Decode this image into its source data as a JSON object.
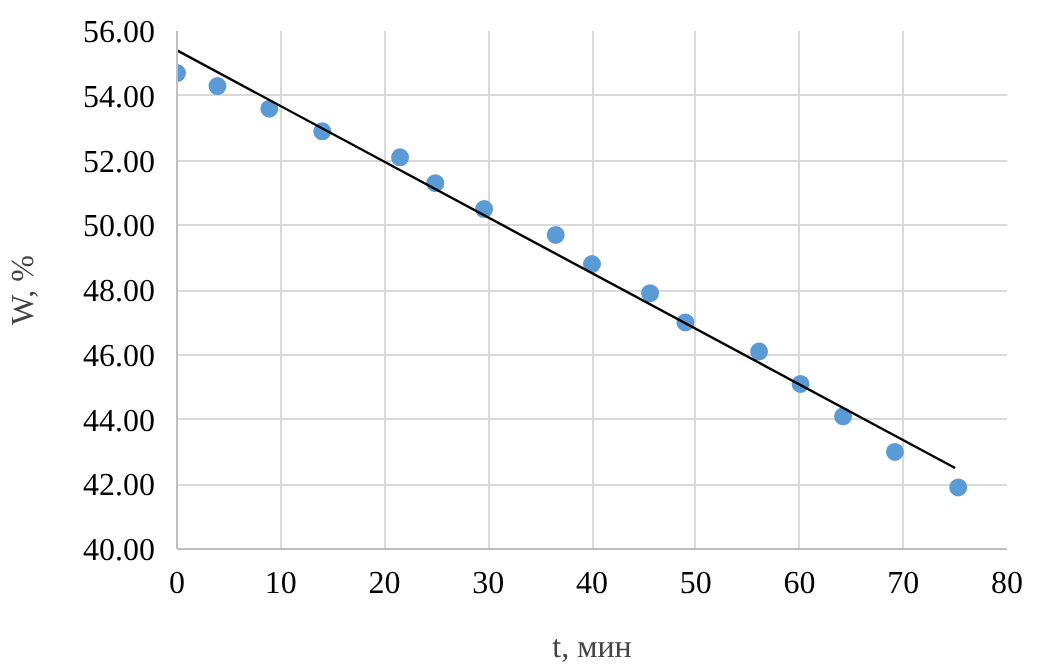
{
  "chart_data": {
    "type": "scatter",
    "xlabel": "t, мин",
    "ylabel": "W, %",
    "xlim": [
      0,
      80
    ],
    "xticks": [
      0,
      10,
      20,
      30,
      40,
      50,
      60,
      70,
      80
    ],
    "ylim": [
      40,
      56
    ],
    "yticks": [
      {
        "value": 40,
        "label": "40.00"
      },
      {
        "value": 42,
        "label": "42.00"
      },
      {
        "value": 44,
        "label": "44.00"
      },
      {
        "value": 46,
        "label": "46.00"
      },
      {
        "value": 48,
        "label": "48.00"
      },
      {
        "value": 50,
        "label": "50.00"
      },
      {
        "value": 52,
        "label": "52.00"
      },
      {
        "value": 54,
        "label": "54.00"
      },
      {
        "value": 56,
        "label": "56.00"
      }
    ],
    "grid": true,
    "marker": "circle",
    "series": [
      {
        "color": "#5b9bd5",
        "x": [
          0,
          3.9,
          8.9,
          14.0,
          21.5,
          24.9,
          29.6,
          36.5,
          40.0,
          45.6,
          49.0,
          56.1,
          60.1,
          64.2,
          69.2,
          75.3
        ],
        "values": [
          54.7,
          54.3,
          53.6,
          52.9,
          52.1,
          51.3,
          50.5,
          49.7,
          48.8,
          47.9,
          47.0,
          46.1,
          45.1,
          44.1,
          43.0,
          41.9
        ]
      },
      {
        "type": "line",
        "marker": "none",
        "color": "#000000",
        "x": [
          0,
          75
        ],
        "values": [
          55.4,
          42.5
        ]
      }
    ]
  }
}
